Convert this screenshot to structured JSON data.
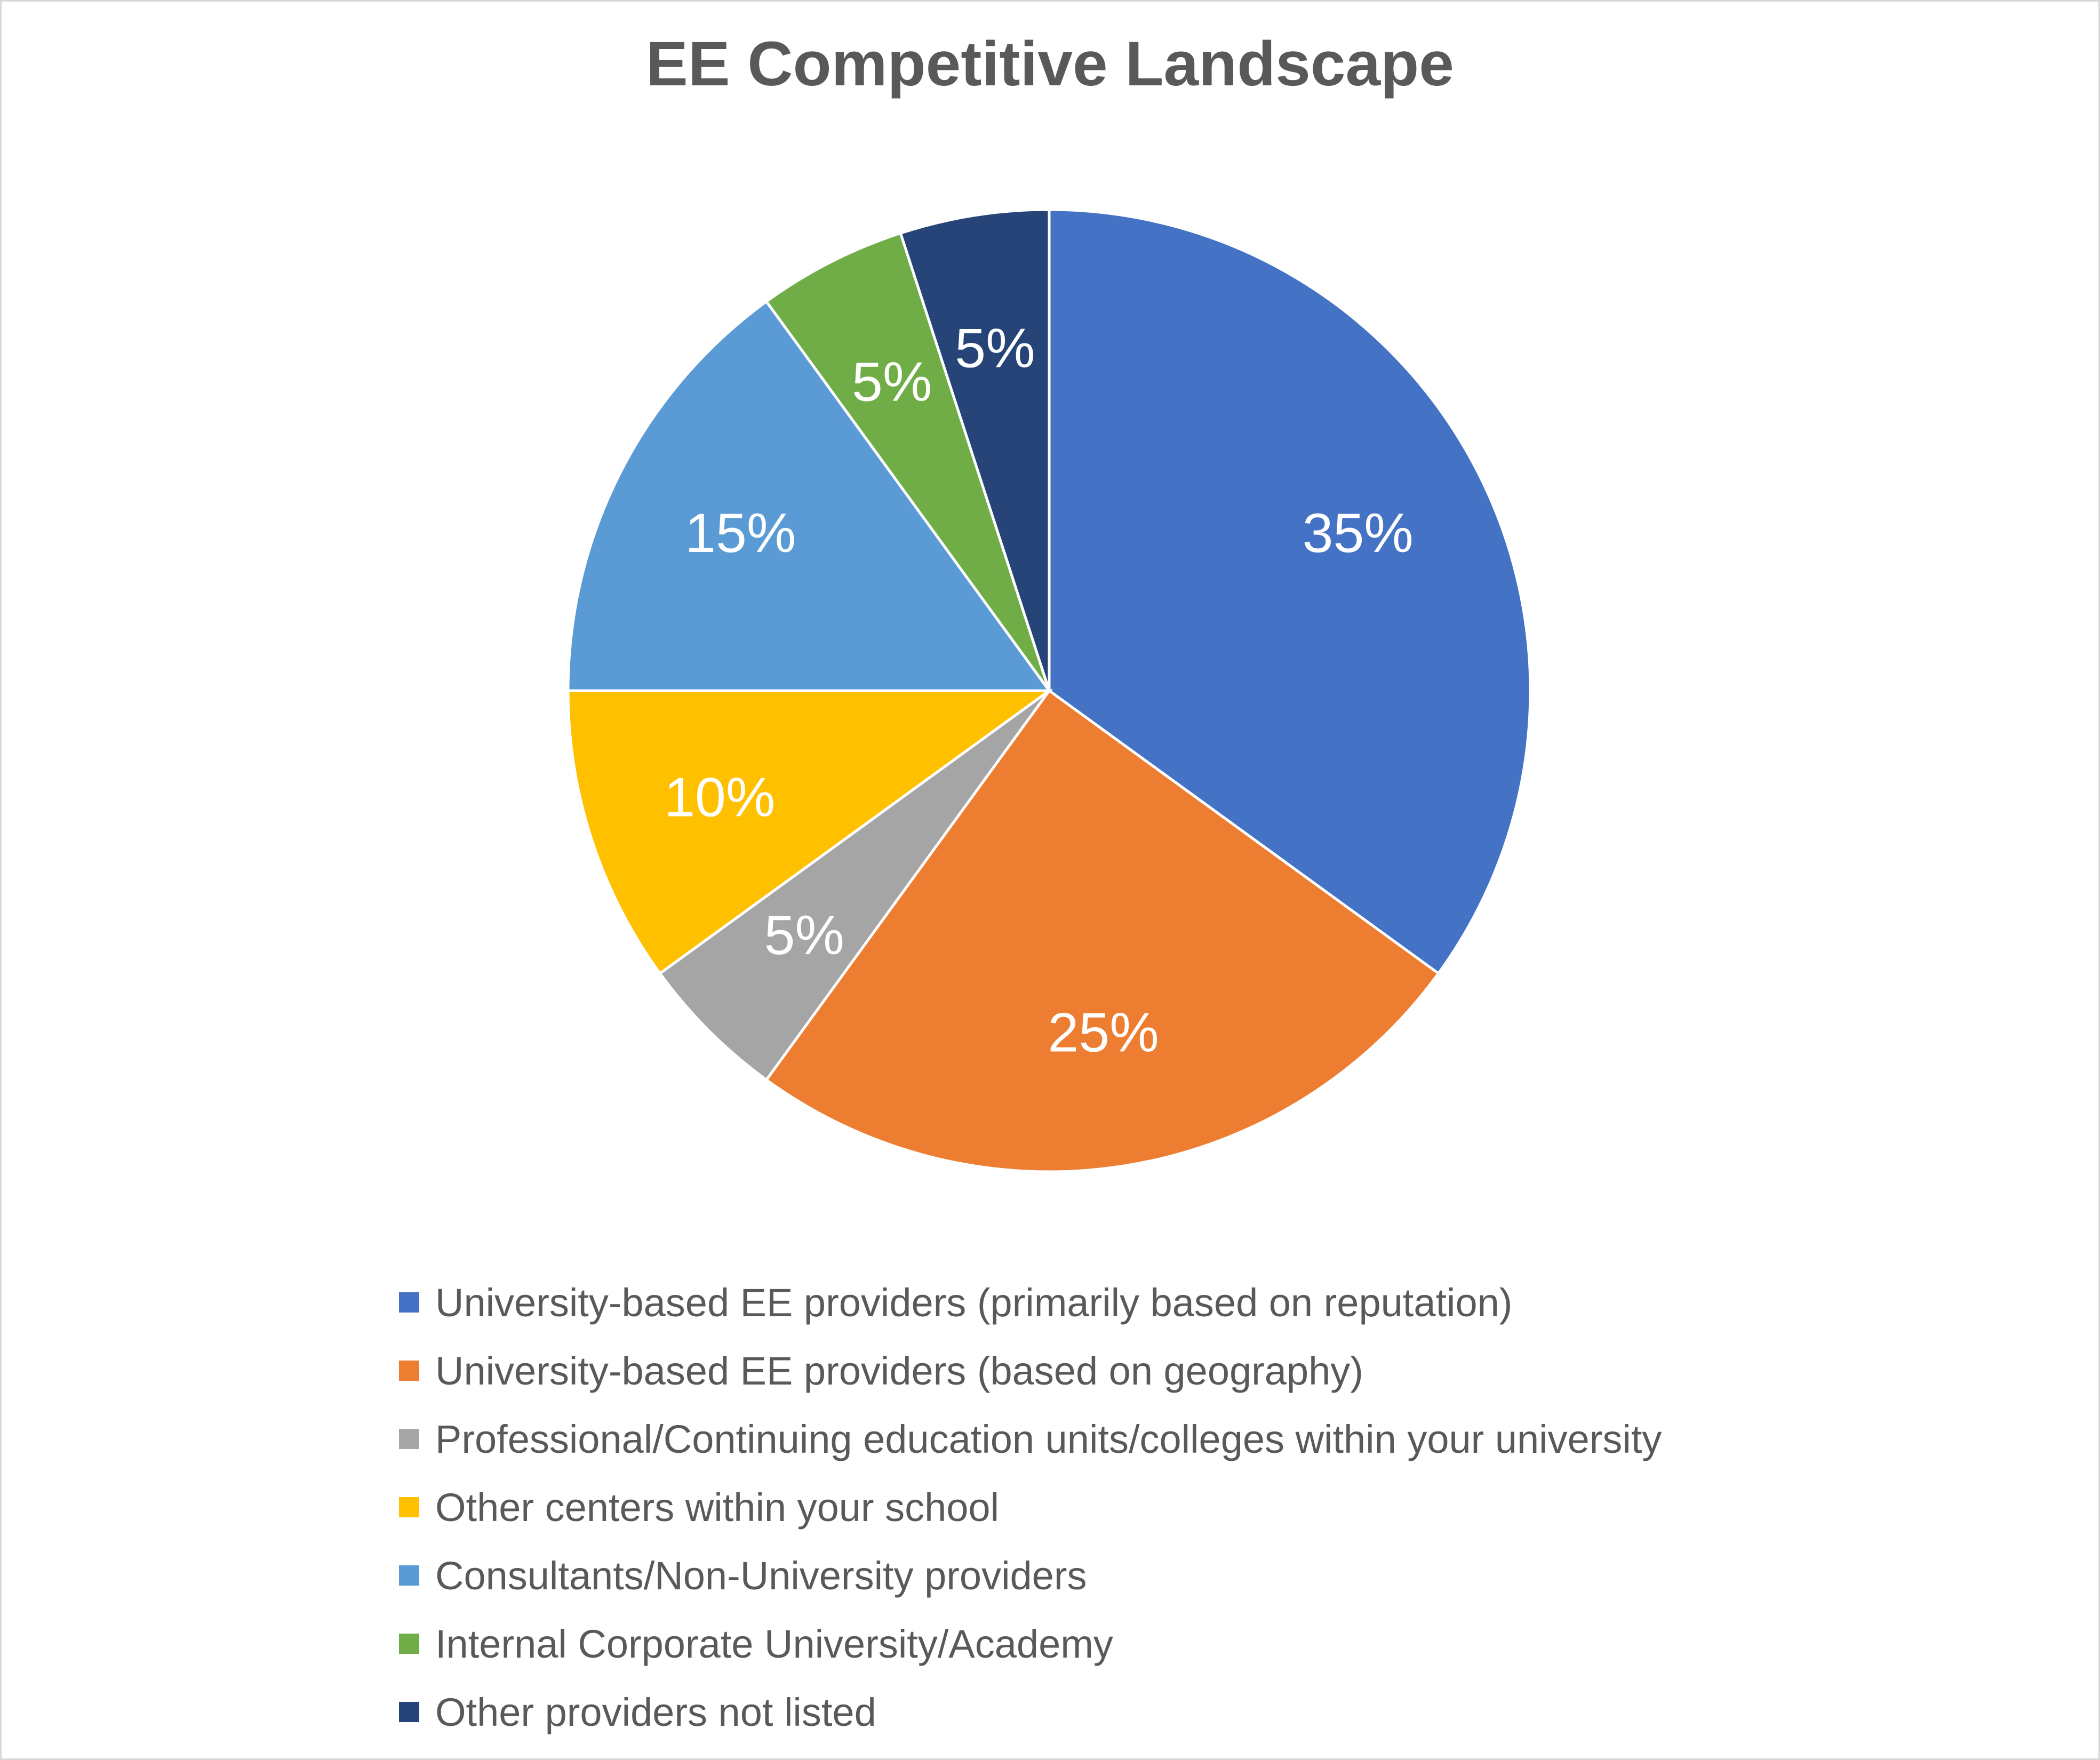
{
  "chart_data": {
    "type": "pie",
    "title": "EE Competitive Landscape",
    "categories": [
      "University-based EE providers (primarily based on reputation)",
      "University-based EE providers (based on geography)",
      "Professional/Continuing education units/colleges within your university",
      "Other centers within your school",
      "Consultants/Non-University providers",
      "Internal Corporate University/Academy",
      "Other providers not listed"
    ],
    "values": [
      35,
      25,
      5,
      10,
      15,
      5,
      5
    ],
    "data_labels": [
      "35%",
      "25%",
      "5%",
      "10%",
      "15%",
      "5%",
      "5%"
    ],
    "colors": [
      "#4472c4",
      "#ed7d31",
      "#a5a5a5",
      "#ffc000",
      "#5b9bd5",
      "#70ad47",
      "#264478"
    ],
    "legend_position": "bottom"
  }
}
